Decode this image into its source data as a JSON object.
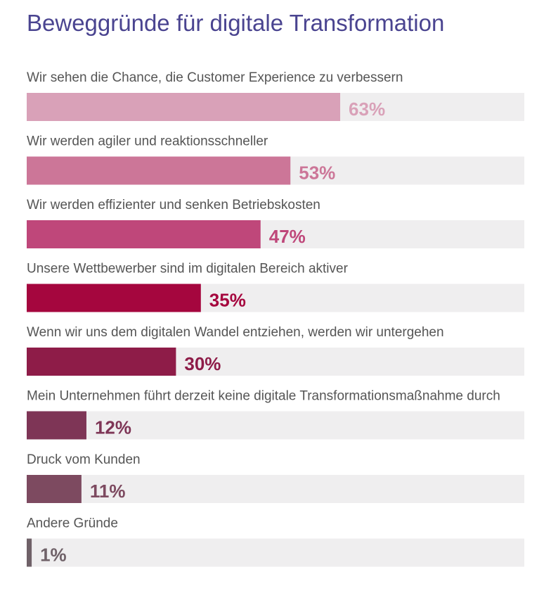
{
  "chart_data": {
    "type": "bar",
    "orientation": "horizontal",
    "title": "Beweggründe für digitale Transformation",
    "xlim": [
      0,
      100
    ],
    "categories": [
      "Wir sehen die Chance, die Customer Experience zu verbessern",
      "Wir werden agiler und reaktionsschneller",
      "Wir werden effizienter und senken Betriebskosten",
      "Unsere Wettbewerber sind im digitalen Bereich aktiver",
      "Wenn wir uns dem digitalen Wandel entziehen, werden wir untergehen",
      "Mein Unternehmen führt derzeit keine digitale Transformationsmaßnahme durch",
      "Druck vom Kunden",
      "Andere Gründe"
    ],
    "values": [
      63,
      53,
      47,
      35,
      30,
      12,
      11,
      1
    ],
    "value_labels": [
      "63%",
      "53%",
      "47%",
      "35%",
      "30%",
      "12%",
      "11%",
      "1%"
    ],
    "bar_colors": [
      "#d9a1b8",
      "#cc7698",
      "#bf477a",
      "#a5063e",
      "#8e1c48",
      "#7e3556",
      "#7d4a60",
      "#6f6168"
    ],
    "value_colors": [
      "#d9a1b8",
      "#cc7698",
      "#bf477a",
      "#a5063e",
      "#8e1c48",
      "#7e3556",
      "#7d4a60",
      "#6f6168"
    ],
    "track_color": "#efeeef",
    "grid": false,
    "legend": "none"
  }
}
